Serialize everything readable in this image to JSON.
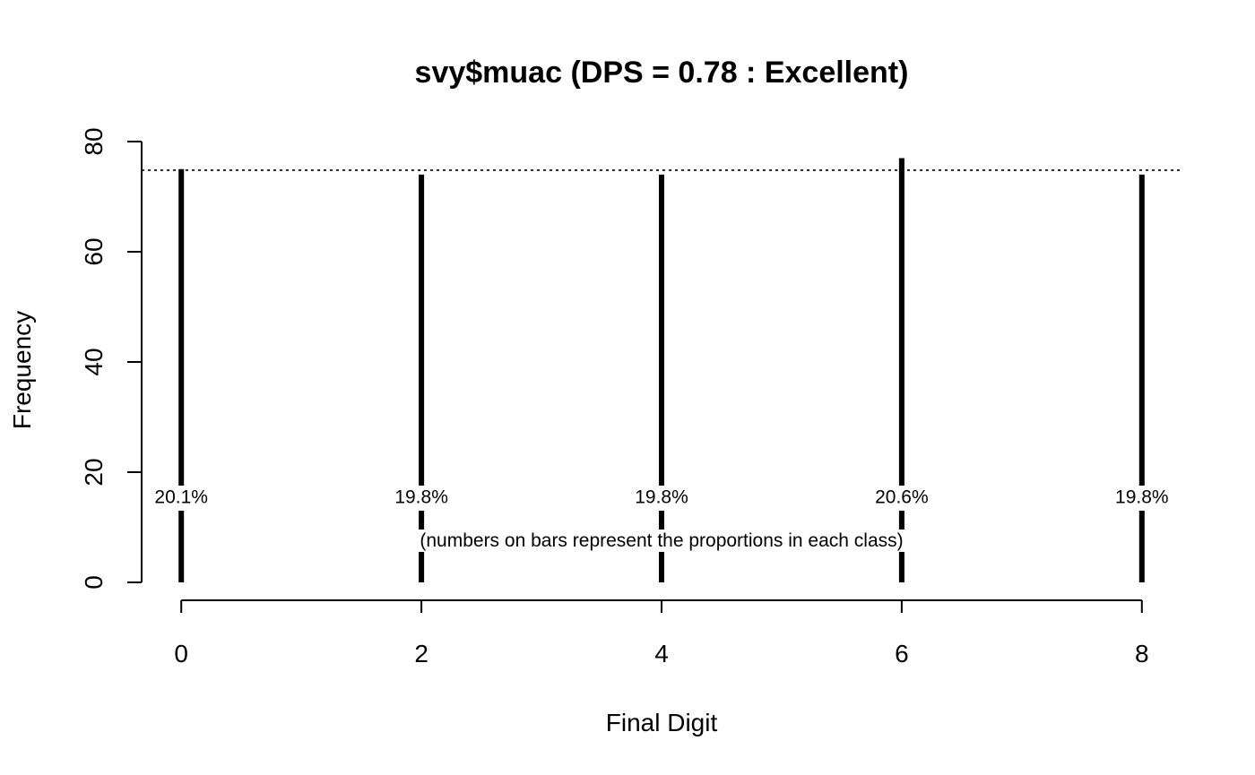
{
  "chart_data": {
    "type": "bar",
    "title": "svy$muac (DPS = 0.78 : Excellent)",
    "xlabel": "Final Digit",
    "ylabel": "Frequency",
    "categories": [
      "0",
      "2",
      "4",
      "6",
      "8"
    ],
    "x": [
      0,
      2,
      4,
      6,
      8
    ],
    "values": [
      75,
      74,
      74,
      77,
      74
    ],
    "proportion_labels": [
      "20.1%",
      "19.8%",
      "19.8%",
      "20.6%",
      "19.8%"
    ],
    "reference_line": 74.8,
    "xlim": [
      -0.33,
      8.33
    ],
    "ylim": [
      0,
      80
    ],
    "yticks": [
      0,
      20,
      40,
      60,
      80
    ],
    "xticks": [
      0,
      2,
      4,
      6,
      8
    ],
    "note": "(numbers on bars represent the proportions in each class)",
    "bar_color": "#000000",
    "grid": false,
    "legend": "none"
  }
}
